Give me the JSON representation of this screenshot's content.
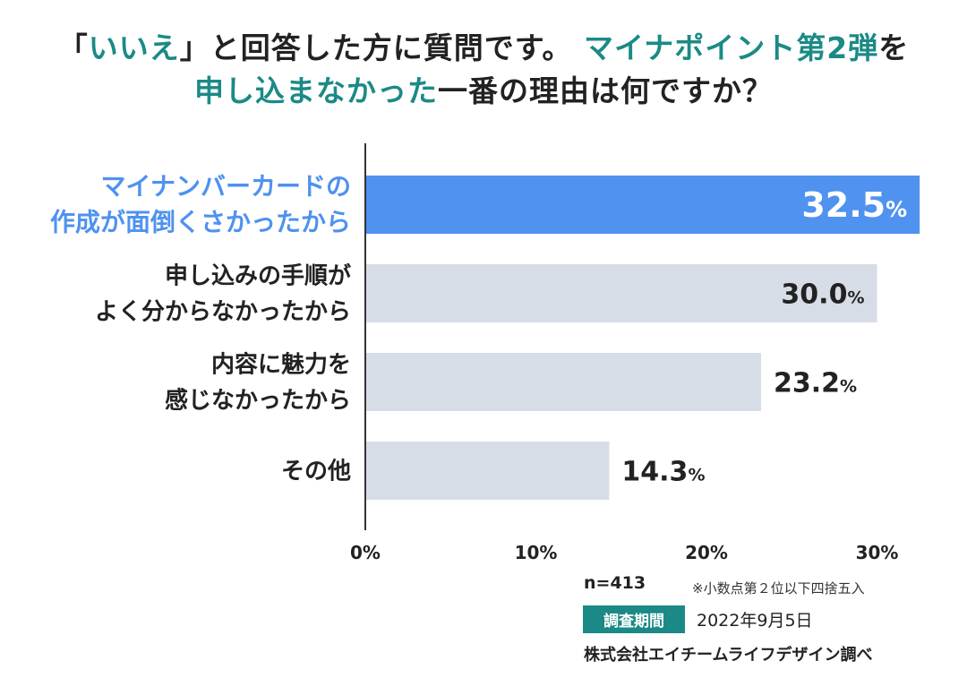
{
  "title": {
    "line1_pre": "「",
    "line1_hl1": "いいえ",
    "line1_mid": "」と回答した方に質問です。 ",
    "line1_hl2": "マイナポイント第2弾",
    "line1_post": "を",
    "line2_hl": "申し込まなかった",
    "line2_post": "一番の理由は何ですか？"
  },
  "chart_data": {
    "type": "bar",
    "orientation": "horizontal",
    "categories": [
      [
        "マイナンバーカードの",
        "作成が面倒くさかったから"
      ],
      [
        "申し込みの手順が",
        "よく分からなかったから"
      ],
      [
        "内容に魅力を",
        "感じなかったから"
      ],
      [
        "その他"
      ]
    ],
    "values": [
      32.5,
      30.0,
      23.2,
      14.3
    ],
    "value_labels": [
      "32.5",
      "30.0",
      "23.2",
      "14.3"
    ],
    "unit": "%",
    "xlim": [
      0,
      33.3
    ],
    "xticks": [
      0,
      10,
      20,
      30
    ],
    "xtick_labels": [
      "0%",
      "10%",
      "20%",
      "30%"
    ],
    "highlight_index": 0,
    "colors": {
      "highlight_bar": "#4f92ef",
      "bar": "#d7dde7",
      "highlight_text": "#4f92ef",
      "text": "#222222",
      "axis": "#333333"
    }
  },
  "footer": {
    "n": "n=413",
    "note": "※小数点第２位以下四捨五入",
    "badge": "調査期間",
    "date": "2022年9月5日",
    "credit": "株式会社エイチームライフデザイン調べ"
  }
}
